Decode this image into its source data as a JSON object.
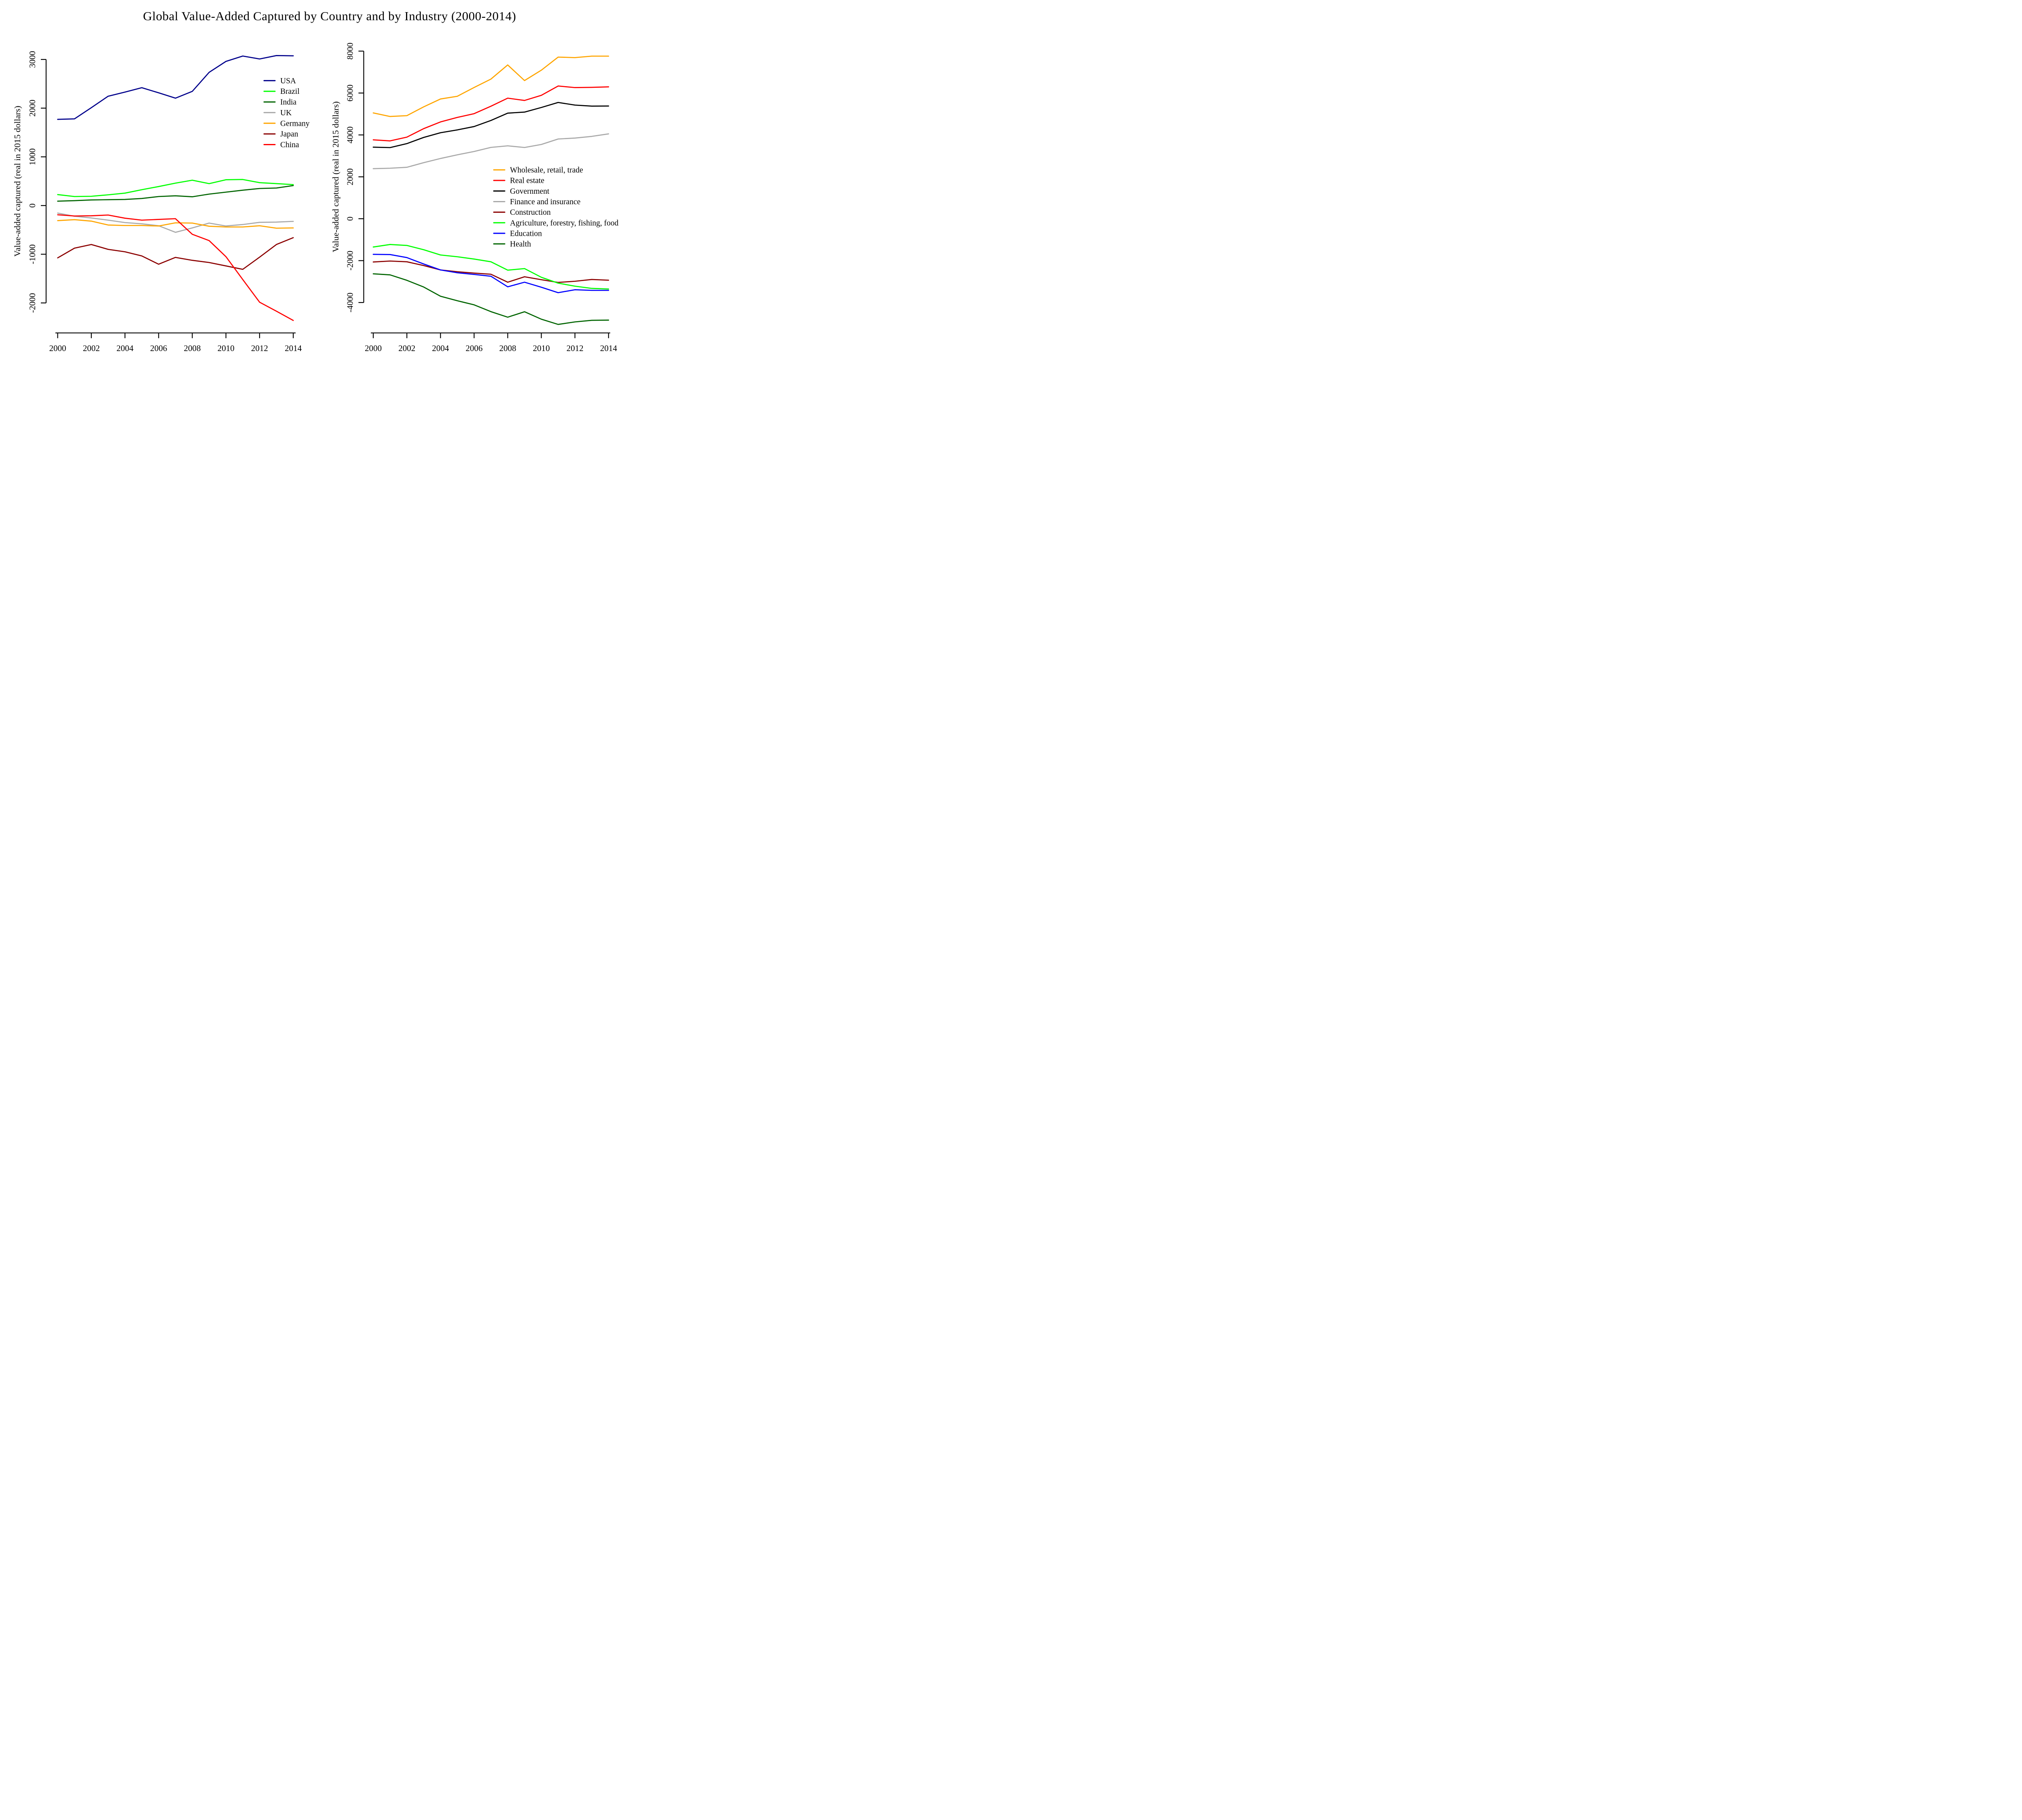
{
  "title": "Global Value-Added Captured by Country and by Industry (2000-2014)",
  "chart_data": [
    {
      "type": "line",
      "panel": "countries",
      "title": "",
      "xlabel": "",
      "ylabel": "Value-added captured (real in 2015 dollars)",
      "x": [
        2000,
        2001,
        2002,
        2003,
        2004,
        2005,
        2006,
        2007,
        2008,
        2009,
        2010,
        2011,
        2012,
        2013,
        2014
      ],
      "xticks": [
        2000,
        2002,
        2004,
        2006,
        2008,
        2010,
        2012,
        2014
      ],
      "yticks": [
        3000,
        2000,
        1000,
        0,
        -1000,
        -2000
      ],
      "ylim": [
        -2600,
        3300
      ],
      "grid": false,
      "legend_position": "right-upper-inside",
      "series": [
        {
          "id": "usa",
          "name": "USA",
          "color": "#00008B",
          "values": [
            1770,
            1780,
            2010,
            2245,
            2330,
            2420,
            2315,
            2205,
            2345,
            2735,
            2960,
            3070,
            3010,
            3080,
            3075
          ]
        },
        {
          "id": "brazil",
          "name": "Brazil",
          "color": "#00FF00",
          "values": [
            225,
            185,
            190,
            220,
            255,
            325,
            390,
            460,
            520,
            450,
            530,
            535,
            470,
            450,
            430
          ]
        },
        {
          "id": "india",
          "name": "India",
          "color": "#006400",
          "values": [
            90,
            100,
            115,
            120,
            125,
            145,
            185,
            200,
            180,
            235,
            275,
            315,
            350,
            360,
            410
          ]
        },
        {
          "id": "uk",
          "name": "UK",
          "color": "#A9A9A9",
          "values": [
            -155,
            -220,
            -255,
            -300,
            -350,
            -375,
            -415,
            -550,
            -460,
            -360,
            -420,
            -390,
            -345,
            -340,
            -325
          ]
        },
        {
          "id": "germany",
          "name": "Germany",
          "color": "#FFA500",
          "values": [
            -310,
            -290,
            -320,
            -400,
            -410,
            -410,
            -420,
            -355,
            -360,
            -425,
            -440,
            -440,
            -415,
            -465,
            -460
          ]
        },
        {
          "id": "japan",
          "name": "Japan",
          "color": "#8B0000",
          "values": [
            -1075,
            -875,
            -800,
            -900,
            -950,
            -1035,
            -1205,
            -1065,
            -1125,
            -1170,
            -1240,
            -1310,
            -1060,
            -800,
            -660
          ]
        },
        {
          "id": "china",
          "name": "China",
          "color": "#FF0000",
          "values": [
            -190,
            -215,
            -210,
            -195,
            -260,
            -300,
            -285,
            -270,
            -590,
            -720,
            -1050,
            -1520,
            -1985,
            -2170,
            -2360
          ]
        }
      ]
    },
    {
      "type": "line",
      "panel": "industries",
      "title": "",
      "xlabel": "",
      "ylabel": "Value-added captured (real in 2015 dollars)",
      "x": [
        2000,
        2001,
        2002,
        2003,
        2004,
        2005,
        2006,
        2007,
        2008,
        2009,
        2010,
        2011,
        2012,
        2013,
        2014
      ],
      "xticks": [
        2000,
        2002,
        2004,
        2006,
        2008,
        2010,
        2012,
        2014
      ],
      "yticks": [
        8000,
        6000,
        4000,
        2000,
        0,
        -2000,
        -4000
      ],
      "ylim": [
        -5700,
        8300
      ],
      "grid": false,
      "legend_position": "right-middle-inside",
      "series": [
        {
          "id": "wholesale-retail-trade",
          "name": "Wholesale, retail, trade",
          "color": "#FFA500",
          "values": [
            5050,
            4880,
            4920,
            5340,
            5715,
            5845,
            6265,
            6665,
            7340,
            6595,
            7090,
            7715,
            7690,
            7760,
            7760
          ]
        },
        {
          "id": "real-estate",
          "name": "Real estate",
          "color": "#FF0000",
          "values": [
            3765,
            3715,
            3895,
            4300,
            4620,
            4835,
            5015,
            5370,
            5755,
            5645,
            5890,
            6335,
            6260,
            6270,
            6295
          ]
        },
        {
          "id": "government",
          "name": "Government",
          "color": "#000000",
          "values": [
            3415,
            3395,
            3585,
            3880,
            4105,
            4240,
            4400,
            4690,
            5040,
            5090,
            5310,
            5550,
            5425,
            5375,
            5380
          ]
        },
        {
          "id": "finance-insurance",
          "name": "Finance and insurance",
          "color": "#A9A9A9",
          "values": [
            2390,
            2410,
            2455,
            2675,
            2875,
            3050,
            3210,
            3405,
            3480,
            3400,
            3545,
            3805,
            3850,
            3930,
            4050
          ]
        },
        {
          "id": "construction",
          "name": "Construction",
          "color": "#8B0000",
          "values": [
            -2065,
            -2020,
            -2055,
            -2235,
            -2445,
            -2530,
            -2595,
            -2650,
            -3030,
            -2770,
            -2910,
            -3040,
            -2985,
            -2900,
            -2935
          ]
        },
        {
          "id": "agriculture",
          "name": "Agriculture, forestry, fishing, food",
          "color": "#00FF00",
          "values": [
            -1350,
            -1230,
            -1275,
            -1480,
            -1730,
            -1815,
            -1925,
            -2055,
            -2455,
            -2380,
            -2795,
            -3075,
            -3220,
            -3325,
            -3355
          ]
        },
        {
          "id": "education",
          "name": "Education",
          "color": "#0000FF",
          "values": [
            -1700,
            -1710,
            -1855,
            -2160,
            -2445,
            -2580,
            -2660,
            -2745,
            -3250,
            -3030,
            -3270,
            -3530,
            -3390,
            -3420,
            -3420
          ]
        },
        {
          "id": "health",
          "name": "Health",
          "color": "#006400",
          "values": [
            -2630,
            -2680,
            -2940,
            -3260,
            -3700,
            -3915,
            -4110,
            -4435,
            -4700,
            -4440,
            -4795,
            -5045,
            -4925,
            -4850,
            -4840
          ]
        }
      ]
    }
  ]
}
